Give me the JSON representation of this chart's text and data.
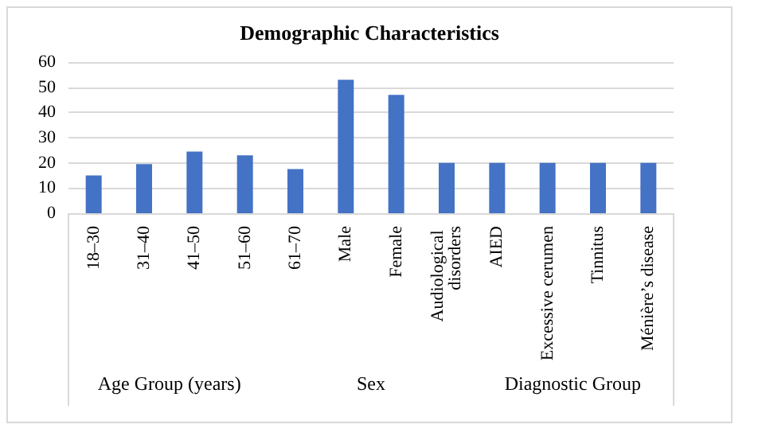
{
  "chart_data": {
    "type": "bar",
    "title": "Demographic Characteristics",
    "categories": [
      "18–30",
      "31–40",
      "41–50",
      "51–60",
      "61–70",
      "Male",
      "Female",
      "Audiological disorders",
      "AIED",
      "Excessive cerumen",
      "Tinnitus",
      "Ménière’s disease"
    ],
    "values": [
      15,
      19.5,
      24.5,
      23,
      17.5,
      53,
      47,
      20,
      20,
      20,
      20,
      20
    ],
    "color": "#4472c4",
    "ylim": [
      0,
      60
    ],
    "yticks": [
      0,
      10,
      20,
      30,
      40,
      50,
      60
    ],
    "grid": "y",
    "annotations": [
      "Age Group (years)",
      "Sex",
      "Diagnostic Group"
    ]
  }
}
